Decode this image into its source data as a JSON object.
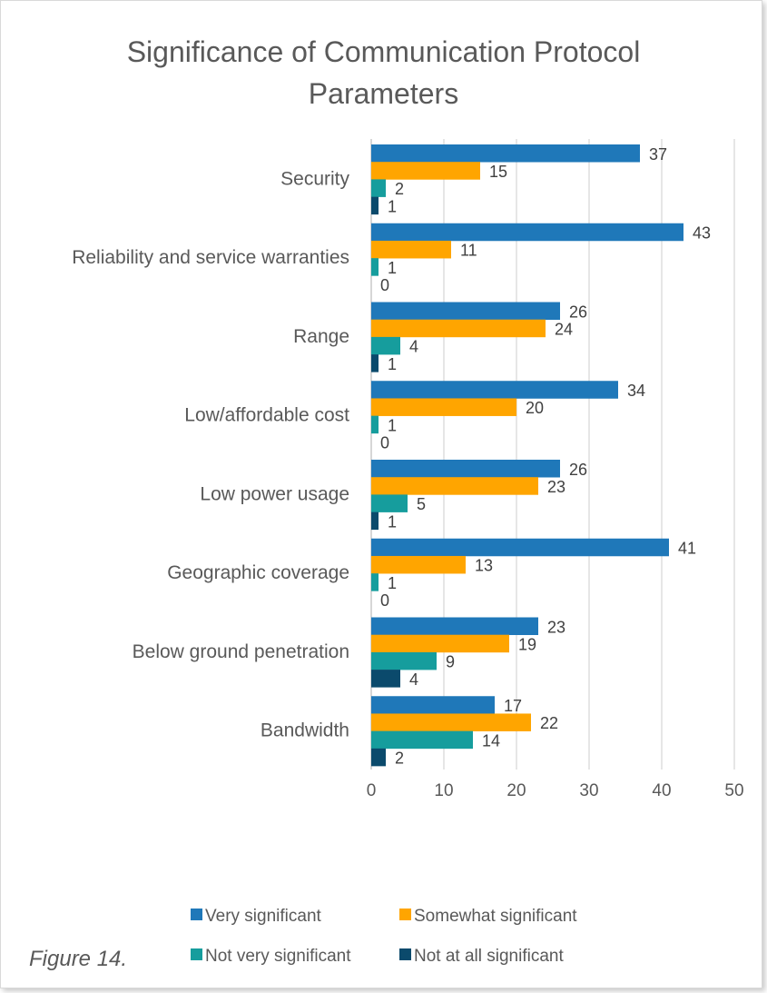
{
  "caption": "Figure 14.",
  "chart_data": {
    "type": "bar",
    "orientation": "horizontal",
    "title": "Significance of Communication Protocol Parameters",
    "title_lines": [
      "Significance of Communication Protocol",
      "Parameters"
    ],
    "categories": [
      "Security",
      "Reliability and service warranties",
      "Range",
      "Low/affordable cost",
      "Low power usage",
      "Geographic coverage",
      "Below ground penetration",
      "Bandwidth"
    ],
    "series": [
      {
        "name": "Very significant",
        "color": "#1f78b9",
        "values": [
          37,
          43,
          26,
          34,
          26,
          41,
          23,
          17
        ]
      },
      {
        "name": "Somewhat significant",
        "color": "#ffa500",
        "values": [
          15,
          11,
          24,
          20,
          23,
          13,
          19,
          22
        ]
      },
      {
        "name": "Not very significant",
        "color": "#169d9d",
        "values": [
          2,
          1,
          4,
          1,
          5,
          1,
          9,
          14
        ]
      },
      {
        "name": "Not at all significant",
        "color": "#0b4a6c",
        "values": [
          1,
          0,
          1,
          0,
          1,
          0,
          4,
          2
        ]
      }
    ],
    "xlim": [
      0,
      50
    ],
    "xticks": [
      0,
      10,
      20,
      30,
      40,
      50
    ],
    "grid": "vertical",
    "legend": "bottom",
    "data_labels": true
  }
}
